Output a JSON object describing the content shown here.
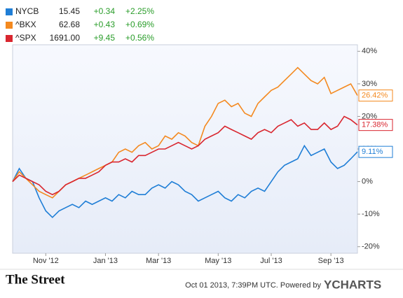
{
  "chart_data": {
    "type": "line",
    "categories": [
      null,
      null,
      null,
      null,
      null,
      "Nov '12",
      null,
      null,
      null,
      null,
      null,
      null,
      null,
      null,
      "Jan '13",
      null,
      null,
      null,
      null,
      null,
      null,
      null,
      "Mar '13",
      null,
      null,
      null,
      null,
      null,
      null,
      null,
      null,
      "May '13",
      null,
      null,
      null,
      null,
      null,
      null,
      null,
      "Jul '13",
      null,
      null,
      null,
      null,
      null,
      null,
      null,
      null,
      "Sep '13",
      null,
      null,
      null,
      null
    ],
    "ylim": [
      -22,
      42
    ],
    "yticks": [
      {
        "value": -20,
        "label": "-20%"
      },
      {
        "value": -10,
        "label": "-10%"
      },
      {
        "value": 0,
        "label": "0%"
      },
      {
        "value": 10,
        "label": "10%"
      },
      {
        "value": 20,
        "label": "20%"
      },
      {
        "value": 30,
        "label": "30%"
      },
      {
        "value": 40,
        "label": "40%"
      }
    ],
    "series": [
      {
        "name": "NYCB",
        "price": "15.45",
        "change": "+0.34",
        "change_pct": "+2.25%",
        "color": "#1f7ed6",
        "end_label": "9.11%",
        "values": [
          0,
          4,
          1,
          0,
          -5,
          -9,
          -11,
          -9,
          -8,
          -7,
          -8,
          -6,
          -7,
          -6,
          -5,
          -6,
          -4,
          -5,
          -3,
          -4,
          -4,
          -2,
          -1,
          -2,
          0,
          -1,
          -3,
          -4,
          -6,
          -5,
          -4,
          -3,
          -5,
          -6,
          -4,
          -5,
          -3,
          -2,
          -3,
          0,
          3,
          5,
          6,
          7,
          11,
          8,
          9,
          10,
          6,
          4,
          5,
          7,
          9.11
        ]
      },
      {
        "name": "^BKX",
        "price": "62.68",
        "change": "+0.43",
        "change_pct": "+0.69%",
        "color": "#f4891f",
        "end_label": "26.42%",
        "values": [
          0,
          3,
          1,
          -1,
          -3,
          -4,
          -5,
          -3,
          -1,
          0,
          1,
          2,
          3,
          4,
          5,
          6,
          9,
          10,
          9,
          11,
          12,
          10,
          11,
          14,
          13,
          15,
          14,
          12,
          11,
          17,
          20,
          24,
          25,
          23,
          24,
          21,
          20,
          24,
          26,
          28,
          29,
          31,
          33,
          35,
          33,
          31,
          30,
          32,
          27,
          28,
          29,
          30,
          26.42
        ]
      },
      {
        "name": "^SPX",
        "price": "1691.00",
        "change": "+9.45",
        "change_pct": "+0.56%",
        "color": "#d9262f",
        "end_label": "17.38%",
        "values": [
          0,
          2,
          1,
          0,
          -1,
          -3,
          -4,
          -3,
          -1,
          0,
          1,
          1,
          2,
          3,
          5,
          6,
          6,
          7,
          6,
          8,
          8,
          9,
          10,
          10,
          11,
          12,
          11,
          10,
          11,
          13,
          14,
          15,
          17,
          16,
          15,
          14,
          13,
          15,
          16,
          15,
          17,
          18,
          19,
          17,
          18,
          16,
          16,
          18,
          16,
          17,
          20,
          19,
          17.38
        ]
      }
    ]
  },
  "footer": {
    "brand": "The Street",
    "timestamp": "Oct 01 2013, 7:39PM UTC.  Powered by",
    "logo": "YCHARTS"
  }
}
